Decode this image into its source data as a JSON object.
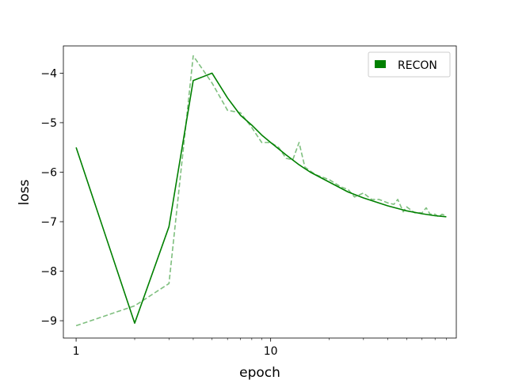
{
  "chart_data": {
    "type": "line",
    "xscale": "log",
    "xlabel": "epoch",
    "ylabel": "loss",
    "xlim": [
      0.86,
      90
    ],
    "ylim": [
      -9.35,
      -3.45
    ],
    "xticks": [
      {
        "value": 1,
        "label": "1"
      },
      {
        "value": 10,
        "label": "10"
      }
    ],
    "yticks": [
      {
        "value": -9,
        "label": "−9"
      },
      {
        "value": -8,
        "label": "−8"
      },
      {
        "value": -7,
        "label": "−7"
      },
      {
        "value": -6,
        "label": "−6"
      },
      {
        "value": -5,
        "label": "−5"
      },
      {
        "value": -4,
        "label": "−4"
      }
    ],
    "legend": {
      "position": "top-right",
      "entries": [
        "RECON"
      ]
    },
    "series": [
      {
        "name": "RECON",
        "color": "#008000",
        "style": "solid",
        "x": [
          1,
          2,
          3,
          4,
          5,
          6,
          7,
          8,
          9,
          10,
          12,
          14,
          16,
          20,
          25,
          30,
          40,
          50,
          60,
          70,
          80
        ],
        "values": [
          -5.5,
          -9.05,
          -7.1,
          -4.15,
          -4.0,
          -4.5,
          -4.85,
          -5.05,
          -5.25,
          -5.4,
          -5.65,
          -5.85,
          -6.0,
          -6.2,
          -6.4,
          -6.52,
          -6.68,
          -6.78,
          -6.84,
          -6.88,
          -6.9
        ]
      },
      {
        "name": "",
        "color": "#7fbf7f",
        "style": "dashed",
        "x": [
          1,
          2,
          3,
          4,
          5,
          6,
          7,
          8,
          9,
          10,
          11,
          12,
          13,
          14,
          15,
          17,
          20,
          23,
          25,
          27,
          30,
          33,
          36,
          40,
          43,
          45,
          48,
          50,
          55,
          60,
          63,
          66,
          70,
          73,
          76,
          80
        ],
        "values": [
          -9.1,
          -8.7,
          -8.25,
          -3.65,
          -4.2,
          -4.75,
          -4.8,
          -5.1,
          -5.4,
          -5.4,
          -5.5,
          -5.72,
          -5.75,
          -5.4,
          -5.9,
          -6.05,
          -6.15,
          -6.3,
          -6.35,
          -6.5,
          -6.42,
          -6.55,
          -6.55,
          -6.62,
          -6.65,
          -6.55,
          -6.8,
          -6.7,
          -6.82,
          -6.82,
          -6.72,
          -6.85,
          -6.85,
          -6.9,
          -6.85,
          -6.88
        ]
      }
    ]
  }
}
